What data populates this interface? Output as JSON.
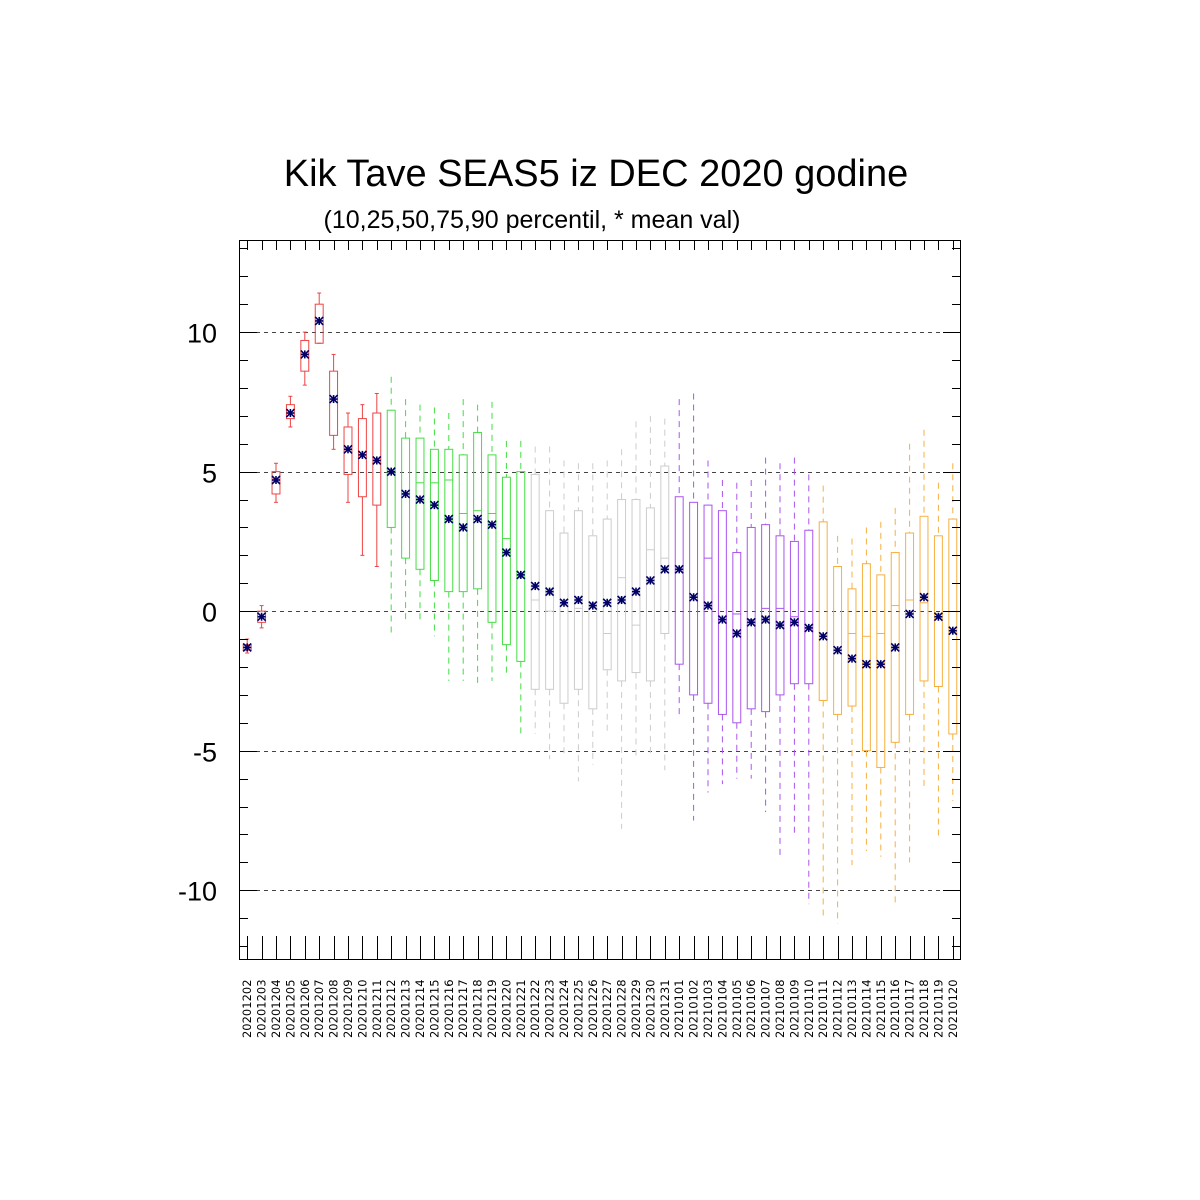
{
  "chart_data": {
    "type": "boxplot",
    "title": "Kik Tave SEAS5 iz DEC 2020 godine",
    "subtitle": "(10,25,50,75,90 percentil, * mean val)",
    "xlabel": "",
    "ylabel": "",
    "ylim": [
      -12.5,
      13.3
    ],
    "yticks": [
      10,
      5,
      0,
      -5,
      -10
    ],
    "ytick_labels": [
      "10",
      "5",
      "0",
      "-5",
      "-10"
    ],
    "grid": "dashed horizontal at major ticks",
    "series_colors": [
      "#ee4444",
      "#44dd44",
      "#cccccc",
      "#aa55ee",
      "#f5b041"
    ],
    "mean_color": "#000066",
    "categories": [
      "20201202",
      "20201203",
      "20201204",
      "20201205",
      "20201206",
      "20201207",
      "20201208",
      "20201209",
      "20201210",
      "20201211",
      "20201212",
      "20201213",
      "20201214",
      "20201215",
      "20201216",
      "20201217",
      "20201218",
      "20201219",
      "20201220",
      "20201221",
      "20201222",
      "20201223",
      "20201224",
      "20201225",
      "20201226",
      "20201227",
      "20201228",
      "20201229",
      "20201230",
      "20201231",
      "20210101",
      "20210102",
      "20210103",
      "20210104",
      "20210105",
      "20210106",
      "20210107",
      "20210108",
      "20210109",
      "20210110",
      "20210111",
      "20210112",
      "20210113",
      "20210114",
      "20210115",
      "20210116",
      "20210117",
      "20210118",
      "20210119",
      "20210120"
    ],
    "color_group": [
      0,
      0,
      0,
      0,
      0,
      0,
      0,
      0,
      0,
      0,
      1,
      1,
      1,
      1,
      1,
      1,
      1,
      1,
      1,
      1,
      2,
      2,
      2,
      2,
      2,
      2,
      2,
      2,
      2,
      2,
      3,
      3,
      3,
      3,
      3,
      3,
      3,
      3,
      3,
      3,
      4,
      4,
      4,
      4,
      4,
      4,
      4,
      4,
      4,
      4
    ],
    "p10": [
      -1.5,
      -0.6,
      3.9,
      6.6,
      8.1,
      9.6,
      5.8,
      3.9,
      2.0,
      1.6,
      -0.8,
      -0.4,
      -0.3,
      -0.9,
      -2.5,
      -2.5,
      -2.6,
      -2.5,
      -2.3,
      -4.4,
      -4.4,
      -5.3,
      -5.1,
      -6.1,
      -5.5,
      -4.3,
      -7.8,
      -5.3,
      -5.1,
      -5.7,
      -3.7,
      -7.5,
      -6.5,
      -6.2,
      -6.0,
      -6.0,
      -7.2,
      -8.9,
      -8.0,
      -10.5,
      -11.0,
      -11.2,
      -9.1,
      -8.6,
      -8.8,
      -10.5,
      -9.0,
      -6.3,
      -8.2,
      -6.8
    ],
    "p25": [
      -1.4,
      -0.4,
      4.2,
      6.9,
      8.6,
      9.6,
      6.3,
      4.9,
      4.1,
      3.8,
      3.0,
      1.9,
      1.5,
      1.1,
      0.7,
      0.7,
      0.8,
      -0.4,
      -1.2,
      -1.8,
      -2.8,
      -2.8,
      -3.3,
      -2.8,
      -3.5,
      -2.1,
      -2.5,
      -2.2,
      -2.5,
      -0.8,
      -1.9,
      -3.0,
      -3.3,
      -3.7,
      -4.0,
      -3.5,
      -3.6,
      -3.0,
      -2.6,
      -2.6,
      -3.2,
      -3.7,
      -3.4,
      -5.0,
      -5.6,
      -4.7,
      -3.7,
      -2.5,
      -2.7,
      -4.4
    ],
    "p50": [
      -1.3,
      -0.2,
      4.7,
      7.1,
      9.2,
      10.4,
      7.6,
      5.8,
      5.6,
      5.4,
      5.0,
      4.2,
      4.6,
      4.6,
      4.7,
      3.5,
      3.6,
      3.5,
      2.6,
      1.2,
      0.4,
      0.0,
      0.4,
      0.1,
      0.3,
      -0.8,
      1.2,
      -0.5,
      2.2,
      1.9,
      1.5,
      0.5,
      1.9,
      -0.3,
      -0.1,
      -0.3,
      0.1,
      0.1,
      -0.2,
      -0.6,
      -0.9,
      -1.4,
      -0.8,
      -0.9,
      -0.8,
      0.2,
      0.4,
      0.3,
      -0.1,
      -0.7
    ],
    "p75": [
      -1.2,
      0.0,
      5.0,
      7.4,
      9.7,
      11.0,
      8.6,
      6.6,
      6.9,
      7.1,
      7.2,
      6.2,
      6.2,
      5.8,
      5.8,
      5.6,
      6.4,
      5.6,
      4.8,
      5.0,
      4.9,
      3.6,
      2.8,
      3.6,
      2.7,
      3.3,
      4.0,
      4.0,
      3.7,
      5.2,
      4.1,
      3.9,
      3.8,
      3.6,
      2.1,
      3.0,
      3.1,
      2.7,
      2.5,
      2.9,
      3.2,
      1.6,
      0.8,
      1.7,
      1.3,
      2.1,
      2.8,
      3.4,
      2.7,
      3.3
    ],
    "p90": [
      -1.0,
      0.2,
      5.3,
      7.7,
      10.0,
      11.4,
      9.2,
      7.1,
      7.4,
      7.8,
      8.4,
      7.6,
      7.4,
      7.3,
      7.1,
      7.6,
      7.4,
      7.5,
      6.1,
      6.1,
      5.9,
      5.9,
      5.4,
      5.3,
      5.3,
      5.4,
      5.8,
      6.8,
      7.0,
      6.9,
      7.6,
      7.8,
      5.4,
      4.7,
      4.6,
      4.7,
      5.5,
      5.3,
      5.5,
      4.9,
      4.5,
      2.7,
      2.6,
      3.0,
      3.2,
      3.7,
      6.0,
      6.5,
      4.6,
      5.3
    ],
    "mean": [
      -1.3,
      -0.2,
      4.7,
      7.1,
      9.2,
      10.4,
      7.6,
      5.8,
      5.6,
      5.4,
      5.0,
      4.2,
      4.0,
      3.8,
      3.3,
      3.0,
      3.3,
      3.1,
      2.1,
      1.3,
      0.9,
      0.7,
      0.3,
      0.4,
      0.2,
      0.3,
      0.4,
      0.7,
      1.1,
      1.5,
      1.5,
      0.5,
      0.2,
      -0.3,
      -0.8,
      -0.4,
      -0.3,
      -0.5,
      -0.4,
      -0.6,
      -0.9,
      -1.4,
      -1.7,
      -1.9,
      -1.9,
      -1.3,
      -0.1,
      0.5,
      -0.2,
      -0.7
    ]
  }
}
